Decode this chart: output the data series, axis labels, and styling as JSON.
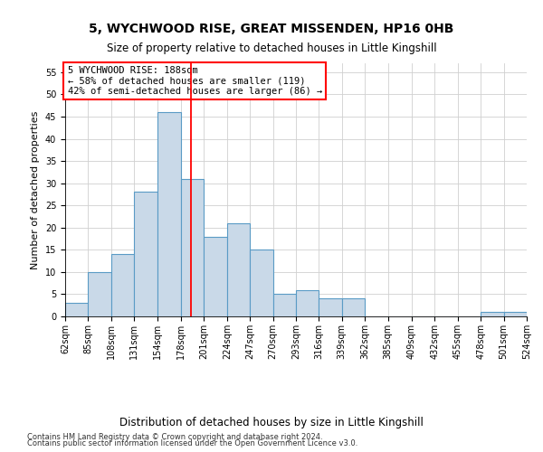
{
  "title": "5, WYCHWOOD RISE, GREAT MISSENDEN, HP16 0HB",
  "subtitle": "Size of property relative to detached houses in Little Kingshill",
  "xlabel": "Distribution of detached houses by size in Little Kingshill",
  "ylabel": "Number of detached properties",
  "footnote1": "Contains HM Land Registry data © Crown copyright and database right 2024.",
  "footnote2": "Contains public sector information licensed under the Open Government Licence v3.0.",
  "annotation_line1": "5 WYCHWOOD RISE: 188sqm",
  "annotation_line2": "← 58% of detached houses are smaller (119)",
  "annotation_line3": "42% of semi-detached houses are larger (86) →",
  "bar_color": "#c9d9e8",
  "bar_edge_color": "#5a9bc5",
  "vline_color": "red",
  "vline_x": 188,
  "bins": [
    62,
    85,
    108,
    131,
    154,
    178,
    201,
    224,
    247,
    270,
    293,
    316,
    339,
    362,
    385,
    409,
    432,
    455,
    478,
    501,
    524
  ],
  "heights": [
    3,
    10,
    14,
    28,
    46,
    31,
    18,
    21,
    15,
    5,
    6,
    4,
    4,
    0,
    0,
    0,
    0,
    0,
    1,
    1
  ],
  "ylim": [
    0,
    57
  ],
  "yticks": [
    0,
    5,
    10,
    15,
    20,
    25,
    30,
    35,
    40,
    45,
    50,
    55
  ],
  "background_color": "#ffffff",
  "grid_color": "#d0d0d0",
  "title_fontsize": 10,
  "subtitle_fontsize": 8.5,
  "ylabel_fontsize": 8,
  "xlabel_fontsize": 8.5,
  "tick_fontsize": 7,
  "annotation_box_edgecolor": "red",
  "annotation_fontsize": 7.5,
  "footnote_fontsize": 6
}
